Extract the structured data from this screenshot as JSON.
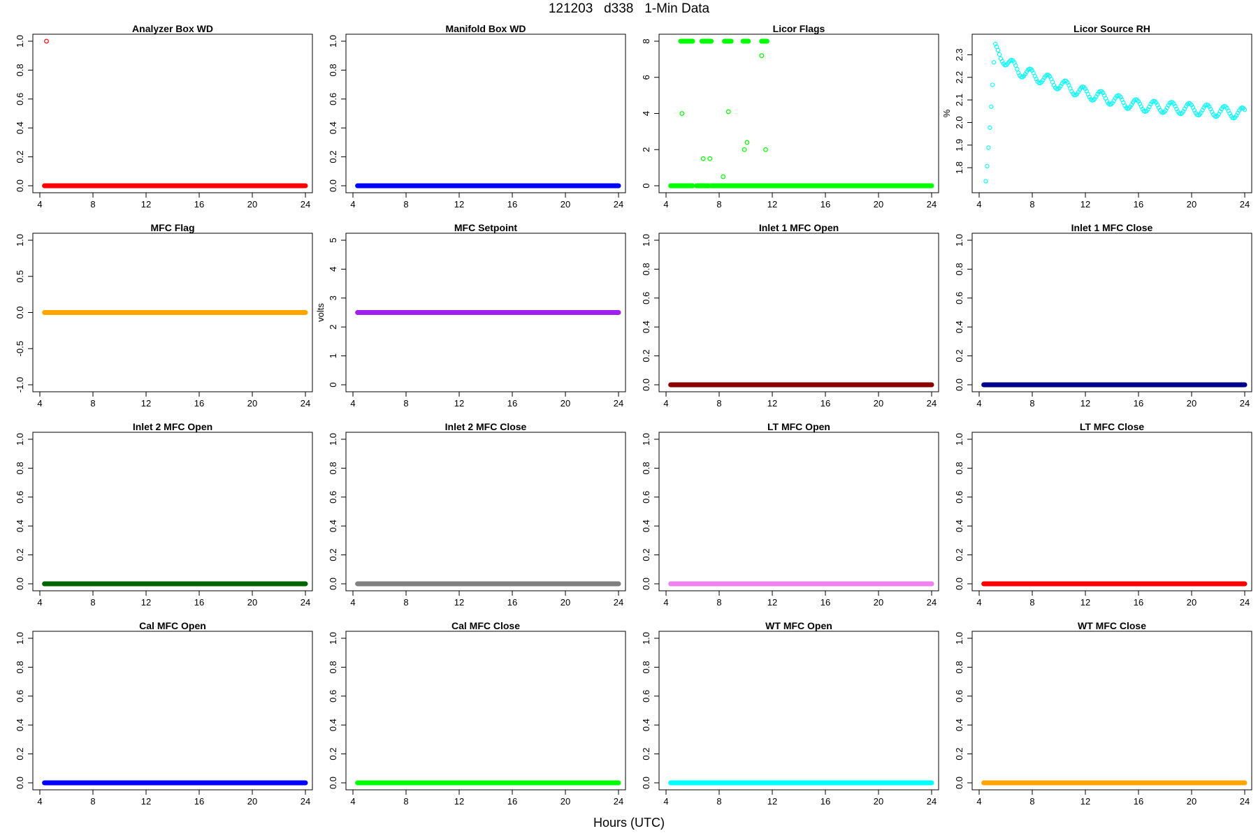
{
  "figure": {
    "title": "121203   d338   1-Min Data",
    "xlabel": "Hours (UTC)"
  },
  "chart_data": [
    {
      "type": "scatter",
      "title": "Analyzer Box WD",
      "ylabel": "",
      "color": "#ff0000",
      "xlim": [
        4,
        24
      ],
      "ylim": [
        0,
        1
      ],
      "xticks": [
        4,
        8,
        12,
        16,
        20,
        24
      ],
      "yticks": [
        0.0,
        0.2,
        0.4,
        0.6,
        0.8,
        1.0
      ],
      "ytick_labels": [
        "0.0",
        "0.2",
        "0.4",
        "0.6",
        "0.8",
        "1.0"
      ],
      "series": [
        {
          "x_range": [
            4.35,
            24.0
          ],
          "value": 0
        }
      ],
      "points": [
        {
          "x": 4.5,
          "y": 1.0
        }
      ]
    },
    {
      "type": "scatter",
      "title": "Manifold Box WD",
      "ylabel": "",
      "color": "#0000ff",
      "xlim": [
        4,
        24
      ],
      "ylim": [
        0,
        1
      ],
      "xticks": [
        4,
        8,
        12,
        16,
        20,
        24
      ],
      "yticks": [
        0.0,
        0.2,
        0.4,
        0.6,
        0.8,
        1.0
      ],
      "ytick_labels": [
        "0.0",
        "0.2",
        "0.4",
        "0.6",
        "0.8",
        "1.0"
      ],
      "series": [
        {
          "x_range": [
            4.35,
            24.0
          ],
          "value": 0
        }
      ]
    },
    {
      "type": "scatter",
      "title": "Licor Flags",
      "ylabel": "",
      "color": "#00ff00",
      "xlim": [
        4,
        24
      ],
      "ylim": [
        0,
        8
      ],
      "xticks": [
        4,
        8,
        12,
        16,
        20,
        24
      ],
      "yticks": [
        0,
        2,
        4,
        6,
        8
      ],
      "ytick_labels": [
        "0",
        "2",
        "4",
        "6",
        "8"
      ],
      "series": [
        {
          "x_range": [
            4.35,
            24.0
          ],
          "value": 0,
          "gaps": [
            [
              6.0,
              6.3
            ],
            [
              7.2,
              7.4
            ]
          ]
        }
      ],
      "segments_at_8": [
        [
          5.1,
          6.0
        ],
        [
          6.7,
          7.4
        ],
        [
          8.4,
          8.9
        ],
        [
          9.8,
          10.2
        ],
        [
          11.2,
          11.6
        ]
      ],
      "points": [
        {
          "x": 5.2,
          "y": 4.0
        },
        {
          "x": 6.8,
          "y": 1.5
        },
        {
          "x": 7.3,
          "y": 1.5
        },
        {
          "x": 8.3,
          "y": 0.5
        },
        {
          "x": 8.7,
          "y": 4.1
        },
        {
          "x": 9.9,
          "y": 2.0
        },
        {
          "x": 10.1,
          "y": 2.4
        },
        {
          "x": 11.2,
          "y": 7.2
        },
        {
          "x": 11.5,
          "y": 2.0
        }
      ]
    },
    {
      "type": "scatter",
      "title": "Licor Source RH",
      "ylabel": "%",
      "color": "#00ffff",
      "xlim": [
        4,
        24
      ],
      "ylim": [
        1.72,
        2.36
      ],
      "xticks": [
        4,
        8,
        12,
        16,
        20,
        24
      ],
      "yticks": [
        1.8,
        1.9,
        2.0,
        2.1,
        2.2,
        2.3
      ],
      "ytick_labels": [
        "1.8",
        "1.9",
        "2.0",
        "2.1",
        "2.2",
        "2.3"
      ],
      "curve": {
        "x_start": 4.5,
        "y_start": 1.74,
        "x_peak": 5.2,
        "y_peak": 2.35,
        "trend_points": [
          [
            5.2,
            2.35
          ],
          [
            5.6,
            2.29
          ],
          [
            7,
            2.23
          ],
          [
            9,
            2.19
          ],
          [
            12,
            2.13
          ],
          [
            16,
            2.075
          ],
          [
            20,
            2.06
          ],
          [
            24,
            2.04
          ]
        ],
        "oscillation_amplitude": 0.025,
        "oscillation_period_hours": 1.33
      }
    },
    {
      "type": "scatter",
      "title": "MFC Flag",
      "ylabel": "",
      "color": "#ffa500",
      "xlim": [
        4,
        24
      ],
      "ylim": [
        -1,
        1
      ],
      "xticks": [
        4,
        8,
        12,
        16,
        20,
        24
      ],
      "yticks": [
        -1.0,
        -0.5,
        0.0,
        0.5,
        1.0
      ],
      "ytick_labels": [
        "-1.0",
        "-0.5",
        "0.0",
        "0.5",
        "1.0"
      ],
      "series": [
        {
          "x_range": [
            4.35,
            24.0
          ],
          "value": 0
        }
      ]
    },
    {
      "type": "scatter",
      "title": "MFC Setpoint",
      "ylabel": "volts",
      "color": "#a020f0",
      "xlim": [
        4,
        24
      ],
      "ylim": [
        0,
        5
      ],
      "xticks": [
        4,
        8,
        12,
        16,
        20,
        24
      ],
      "yticks": [
        0,
        1,
        2,
        3,
        4,
        5
      ],
      "ytick_labels": [
        "0",
        "1",
        "2",
        "3",
        "4",
        "5"
      ],
      "series": [
        {
          "x_range": [
            4.35,
            24.0
          ],
          "value": 2.5
        }
      ]
    },
    {
      "type": "scatter",
      "title": "Inlet 1 MFC Open",
      "ylabel": "",
      "color": "#8b0000",
      "xlim": [
        4,
        24
      ],
      "ylim": [
        0,
        1
      ],
      "xticks": [
        4,
        8,
        12,
        16,
        20,
        24
      ],
      "yticks": [
        0.0,
        0.2,
        0.4,
        0.6,
        0.8,
        1.0
      ],
      "ytick_labels": [
        "0.0",
        "0.2",
        "0.4",
        "0.6",
        "0.8",
        "1.0"
      ],
      "series": [
        {
          "x_range": [
            4.35,
            24.0
          ],
          "value": 0
        }
      ]
    },
    {
      "type": "scatter",
      "title": "Inlet 1 MFC Close",
      "ylabel": "",
      "color": "#00008b",
      "xlim": [
        4,
        24
      ],
      "ylim": [
        0,
        1
      ],
      "xticks": [
        4,
        8,
        12,
        16,
        20,
        24
      ],
      "yticks": [
        0.0,
        0.2,
        0.4,
        0.6,
        0.8,
        1.0
      ],
      "ytick_labels": [
        "0.0",
        "0.2",
        "0.4",
        "0.6",
        "0.8",
        "1.0"
      ],
      "series": [
        {
          "x_range": [
            4.35,
            24.0
          ],
          "value": 0
        }
      ]
    },
    {
      "type": "scatter",
      "title": "Inlet 2 MFC Open",
      "ylabel": "",
      "color": "#006400",
      "xlim": [
        4,
        24
      ],
      "ylim": [
        0,
        1
      ],
      "xticks": [
        4,
        8,
        12,
        16,
        20,
        24
      ],
      "yticks": [
        0.0,
        0.2,
        0.4,
        0.6,
        0.8,
        1.0
      ],
      "ytick_labels": [
        "0.0",
        "0.2",
        "0.4",
        "0.6",
        "0.8",
        "1.0"
      ],
      "series": [
        {
          "x_range": [
            4.35,
            24.0
          ],
          "value": 0
        }
      ]
    },
    {
      "type": "scatter",
      "title": "Inlet 2 MFC Close",
      "ylabel": "",
      "color": "#808080",
      "xlim": [
        4,
        24
      ],
      "ylim": [
        0,
        1
      ],
      "xticks": [
        4,
        8,
        12,
        16,
        20,
        24
      ],
      "yticks": [
        0.0,
        0.2,
        0.4,
        0.6,
        0.8,
        1.0
      ],
      "ytick_labels": [
        "0.0",
        "0.2",
        "0.4",
        "0.6",
        "0.8",
        "1.0"
      ],
      "series": [
        {
          "x_range": [
            4.35,
            24.0
          ],
          "value": 0
        }
      ]
    },
    {
      "type": "scatter",
      "title": "LT MFC Open",
      "ylabel": "",
      "color": "#ee82ee",
      "xlim": [
        4,
        24
      ],
      "ylim": [
        0,
        1
      ],
      "xticks": [
        4,
        8,
        12,
        16,
        20,
        24
      ],
      "yticks": [
        0.0,
        0.2,
        0.4,
        0.6,
        0.8,
        1.0
      ],
      "ytick_labels": [
        "0.0",
        "0.2",
        "0.4",
        "0.6",
        "0.8",
        "1.0"
      ],
      "series": [
        {
          "x_range": [
            4.35,
            24.0
          ],
          "value": 0
        }
      ]
    },
    {
      "type": "scatter",
      "title": "LT MFC Close",
      "ylabel": "",
      "color": "#ff0000",
      "xlim": [
        4,
        24
      ],
      "ylim": [
        0,
        1
      ],
      "xticks": [
        4,
        8,
        12,
        16,
        20,
        24
      ],
      "yticks": [
        0.0,
        0.2,
        0.4,
        0.6,
        0.8,
        1.0
      ],
      "ytick_labels": [
        "0.0",
        "0.2",
        "0.4",
        "0.6",
        "0.8",
        "1.0"
      ],
      "series": [
        {
          "x_range": [
            4.35,
            24.0
          ],
          "value": 0
        }
      ]
    },
    {
      "type": "scatter",
      "title": "Cal MFC Open",
      "ylabel": "",
      "color": "#0000ff",
      "xlim": [
        4,
        24
      ],
      "ylim": [
        0,
        1
      ],
      "xticks": [
        4,
        8,
        12,
        16,
        20,
        24
      ],
      "yticks": [
        0.0,
        0.2,
        0.4,
        0.6,
        0.8,
        1.0
      ],
      "ytick_labels": [
        "0.0",
        "0.2",
        "0.4",
        "0.6",
        "0.8",
        "1.0"
      ],
      "series": [
        {
          "x_range": [
            4.35,
            24.0
          ],
          "value": 0
        }
      ]
    },
    {
      "type": "scatter",
      "title": "Cal MFC Close",
      "ylabel": "",
      "color": "#00ff00",
      "xlim": [
        4,
        24
      ],
      "ylim": [
        0,
        1
      ],
      "xticks": [
        4,
        8,
        12,
        16,
        20,
        24
      ],
      "yticks": [
        0.0,
        0.2,
        0.4,
        0.6,
        0.8,
        1.0
      ],
      "ytick_labels": [
        "0.0",
        "0.2",
        "0.4",
        "0.6",
        "0.8",
        "1.0"
      ],
      "series": [
        {
          "x_range": [
            4.35,
            24.0
          ],
          "value": 0
        }
      ]
    },
    {
      "type": "scatter",
      "title": "WT MFC Open",
      "ylabel": "",
      "color": "#00ffff",
      "xlim": [
        4,
        24
      ],
      "ylim": [
        0,
        1
      ],
      "xticks": [
        4,
        8,
        12,
        16,
        20,
        24
      ],
      "yticks": [
        0.0,
        0.2,
        0.4,
        0.6,
        0.8,
        1.0
      ],
      "ytick_labels": [
        "0.0",
        "0.2",
        "0.4",
        "0.6",
        "0.8",
        "1.0"
      ],
      "series": [
        {
          "x_range": [
            4.35,
            24.0
          ],
          "value": 0
        }
      ]
    },
    {
      "type": "scatter",
      "title": "WT MFC Close",
      "ylabel": "",
      "color": "#ffa500",
      "xlim": [
        4,
        24
      ],
      "ylim": [
        0,
        1
      ],
      "xticks": [
        4,
        8,
        12,
        16,
        20,
        24
      ],
      "yticks": [
        0.0,
        0.2,
        0.4,
        0.6,
        0.8,
        1.0
      ],
      "ytick_labels": [
        "0.0",
        "0.2",
        "0.4",
        "0.6",
        "0.8",
        "1.0"
      ],
      "series": [
        {
          "x_range": [
            4.35,
            24.0
          ],
          "value": 0
        }
      ]
    }
  ]
}
